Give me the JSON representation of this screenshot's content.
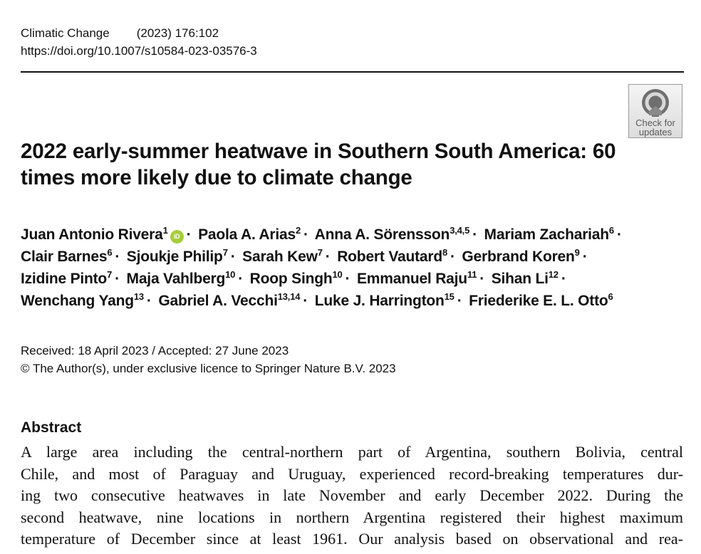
{
  "header": {
    "journal": "Climatic Change",
    "citation": "(2023) 176:102",
    "doi": "https://doi.org/10.1007/s10584-023-03576-3"
  },
  "crossmark": {
    "line1": "Check for",
    "line2": "updates"
  },
  "title": "2022 early-summer heatwave in Southern South America: 60 times more likely due to climate change",
  "authors": [
    {
      "name": "Juan Antonio Rivera",
      "aff": "1",
      "orcid": true
    },
    {
      "name": "Paola A. Arias",
      "aff": "2"
    },
    {
      "name": "Anna A. Sörensson",
      "aff": "3,4,5"
    },
    {
      "name": "Mariam Zachariah",
      "aff": "6"
    },
    {
      "name": "Clair Barnes",
      "aff": "6"
    },
    {
      "name": "Sjoukje Philip",
      "aff": "7"
    },
    {
      "name": "Sarah Kew",
      "aff": "7"
    },
    {
      "name": "Robert Vautard",
      "aff": "8"
    },
    {
      "name": "Gerbrand Koren",
      "aff": "9"
    },
    {
      "name": "Izidine Pinto",
      "aff": "7"
    },
    {
      "name": "Maja Vahlberg",
      "aff": "10"
    },
    {
      "name": "Roop Singh",
      "aff": "10"
    },
    {
      "name": "Emmanuel Raju",
      "aff": "11"
    },
    {
      "name": "Sihan Li",
      "aff": "12"
    },
    {
      "name": "Wenchang Yang",
      "aff": "13"
    },
    {
      "name": "Gabriel A. Vecchi",
      "aff": "13,14"
    },
    {
      "name": "Luke J. Harrington",
      "aff": "15"
    },
    {
      "name": "Friederike E. L. Otto",
      "aff": "6"
    }
  ],
  "orcid_label": "iD",
  "separator": "·",
  "dates": {
    "received": "Received: 18 April 2023 / Accepted: 27 June 2023",
    "copyright": "© The Author(s), under exclusive licence to Springer Nature B.V. 2023"
  },
  "abstract": {
    "heading": "Abstract",
    "lines": [
      "A large area including the central-northern part of Argentina, southern Bolivia, central",
      "Chile, and most of Paraguay and Uruguay, experienced record-breaking temperatures dur-",
      "ing two consecutive heatwaves in late November and early December 2022. During the",
      "second heatwave, nine locations in northern Argentina registered their highest maximum",
      "temperature of December since at least 1961. Our analysis based on observational and rea-"
    ]
  }
}
